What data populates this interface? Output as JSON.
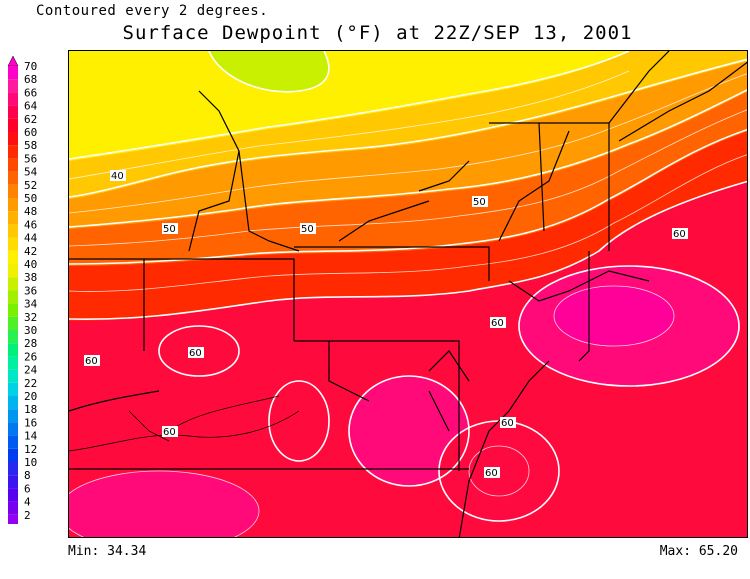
{
  "header": {
    "subtitle": "Contoured every 2 degrees.",
    "title": "Surface Dewpoint (°F) at 22Z/SEP 13, 2001"
  },
  "colorbar": {
    "levels": [
      70,
      68,
      66,
      64,
      62,
      60,
      58,
      56,
      54,
      52,
      50,
      48,
      46,
      44,
      42,
      40,
      38,
      36,
      34,
      32,
      30,
      28,
      26,
      24,
      22,
      20,
      18,
      16,
      14,
      12,
      10,
      8,
      6,
      4,
      2
    ],
    "labels": [
      "70",
      "68",
      "66",
      "64",
      "62",
      "60",
      "58",
      "56",
      "54",
      "52",
      "50",
      "48",
      "46",
      "44",
      "42",
      "40",
      "38",
      "36",
      "34",
      "32",
      "30",
      "28",
      "26",
      "24",
      "22",
      "20",
      "18",
      "16",
      "14",
      "12",
      "10",
      "8",
      "6",
      "4",
      "2"
    ],
    "colors": [
      "#ff00cc",
      "#ff1aa0",
      "#ff0a78",
      "#ff0050",
      "#ff0028",
      "#ff1010",
      "#ff2a00",
      "#ff4800",
      "#ff6400",
      "#ff8200",
      "#ff9a00",
      "#ffb000",
      "#ffc800",
      "#ffdc00",
      "#fff000",
      "#f0f000",
      "#c8f000",
      "#a0f000",
      "#78f000",
      "#50f028",
      "#28f050",
      "#00f078",
      "#00f0a0",
      "#00e6c8",
      "#00d2e6",
      "#00b4f0",
      "#0096f0",
      "#0078f0",
      "#005af0",
      "#003cf0",
      "#2828f0",
      "#3c14f0",
      "#5a00f0",
      "#7800f0",
      "#9600f0"
    ]
  },
  "contour_labels": [
    "40",
    "50",
    "50",
    "50",
    "60",
    "60",
    "60",
    "60",
    "60",
    "60",
    "60"
  ],
  "stats": {
    "min": "Min: 34.34",
    "max": "Max: 65.20"
  }
}
